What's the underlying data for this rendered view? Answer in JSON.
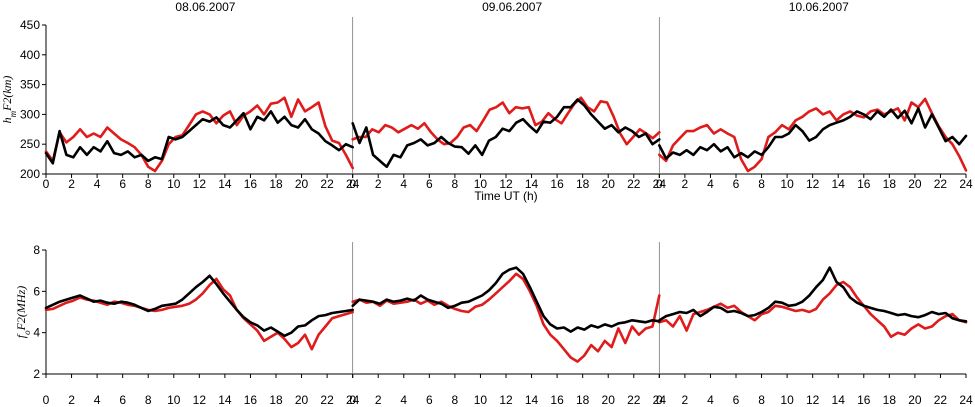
{
  "chart_data": [
    {
      "type": "line",
      "ylabel": "h_mF2(km)",
      "ylabel_main": "h",
      "ylabel_sub": "m",
      "ylabel_rest": "F2(km)",
      "xlabel": "Time UT (h)",
      "ylim": [
        200,
        450
      ],
      "yticks": [
        200,
        250,
        300,
        350,
        400,
        450
      ],
      "xticks_per_day": [
        0,
        2,
        4,
        6,
        8,
        10,
        12,
        14,
        16,
        18,
        20,
        22,
        24
      ],
      "days": [
        "08.06.2007",
        "09.06.2007",
        "10.06.2007"
      ],
      "grid": false,
      "series": [
        {
          "color": "#e01b1b",
          "values": [
            [
              238,
              222,
              270,
              253,
              262,
              275,
              262,
              268,
              262,
              278,
              268,
              258,
              252,
              245,
              232,
              212,
              205,
              222,
              250,
              262,
              265,
              282,
              300,
              305,
              300,
              285,
              298,
              305,
              282,
              298,
              305,
              315,
              300,
              318,
              320,
              328,
              296,
              325,
              305,
              312,
              320,
              280,
              256,
              252,
              232,
              210
            ],
            [
              258,
              262,
              262,
              275,
              270,
              282,
              278,
              270,
              276,
              282,
              276,
              285,
              270,
              258,
              250,
              252,
              262,
              278,
              282,
              272,
              290,
              308,
              312,
              320,
              302,
              312,
              310,
              312,
              282,
              288,
              302,
              292,
              285,
              302,
              318,
              328,
              312,
              305,
              322,
              320,
              296,
              268,
              250,
              262,
              275,
              268,
              260,
              270
            ],
            [
              232,
              222,
              248,
              260,
              272,
              272,
              278,
              282,
              268,
              275,
              268,
              262,
              225,
              205,
              212,
              225,
              262,
              270,
              282,
              275,
              290,
              296,
              305,
              310,
              300,
              305,
              290,
              300,
              305,
              298,
              295,
              305,
              308,
              300,
              305,
              310,
              290,
              320,
              312,
              326,
              302,
              280,
              262,
              250,
              230,
              206
            ]
          ]
        },
        {
          "color": "#000000",
          "values": [
            [
              235,
              218,
              272,
              232,
              228,
              245,
              232,
              245,
              238,
              255,
              235,
              232,
              238,
              228,
              232,
              222,
              228,
              225,
              262,
              258,
              262,
              272,
              282,
              292,
              288,
              295,
              282,
              278,
              290,
              302,
              275,
              296,
              290,
              305,
              286,
              296,
              282,
              278,
              292,
              275,
              268,
              255,
              248,
              240,
              250,
              245
            ],
            [
              285,
              252,
              278,
              232,
              222,
              212,
              232,
              228,
              248,
              252,
              258,
              248,
              252,
              262,
              252,
              246,
              245,
              234,
              248,
              232,
              256,
              262,
              276,
              272,
              286,
              292,
              280,
              270,
              288,
              286,
              296,
              312,
              312,
              325,
              315,
              300,
              288,
              276,
              282,
              270,
              278,
              272,
              262,
              268,
              250,
              258
            ],
            [
              248,
              226,
              236,
              232,
              240,
              232,
              245,
              240,
              250,
              238,
              245,
              228,
              235,
              228,
              238,
              232,
              245,
              262,
              262,
              268,
              282,
              272,
              256,
              262,
              275,
              282,
              286,
              290,
              296,
              305,
              300,
              292,
              305,
              296,
              308,
              294,
              306,
              285,
              310,
              278,
              300,
              278,
              255,
              262,
              250,
              264
            ]
          ]
        }
      ]
    },
    {
      "type": "line",
      "ylabel": "f_oF2(MHz)",
      "ylabel_main": "f",
      "ylabel_sub": "o",
      "ylabel_rest": "F2(MHz)",
      "xlabel": "Time UT (h)",
      "ylim": [
        2,
        8
      ],
      "yticks": [
        2,
        4,
        6,
        8
      ],
      "xticks_per_day": [
        0,
        2,
        4,
        6,
        8,
        10,
        12,
        14,
        16,
        18,
        20,
        22,
        24
      ],
      "grid": false,
      "series": [
        {
          "color": "#e01b1b",
          "values": [
            [
              5.1,
              5.15,
              5.3,
              5.45,
              5.55,
              5.7,
              5.6,
              5.55,
              5.45,
              5.35,
              5.5,
              5.45,
              5.35,
              5.3,
              5.2,
              5.1,
              5.05,
              5.1,
              5.2,
              5.25,
              5.3,
              5.4,
              5.6,
              5.9,
              6.3,
              6.6,
              6.1,
              5.8,
              5.1,
              4.7,
              4.4,
              4.1,
              3.6,
              3.8,
              4.0,
              3.7,
              3.3,
              3.5,
              3.9,
              3.2,
              3.9,
              4.3,
              4.7,
              4.8,
              4.9,
              5.0
            ],
            [
              5.5,
              5.6,
              5.45,
              5.5,
              5.3,
              5.55,
              5.4,
              5.45,
              5.5,
              5.6,
              5.4,
              5.55,
              5.35,
              5.5,
              5.3,
              5.15,
              5.05,
              5.0,
              5.25,
              5.35,
              5.6,
              5.9,
              6.2,
              6.5,
              6.85,
              6.6,
              6.0,
              5.3,
              4.4,
              3.9,
              3.6,
              3.2,
              2.8,
              2.6,
              2.9,
              3.4,
              3.1,
              3.6,
              3.3,
              4.2,
              3.5,
              4.3,
              3.9,
              4.2,
              4.3,
              5.8
            ],
            [
              4.5,
              4.6,
              4.3,
              4.8,
              4.1,
              4.9,
              5.0,
              5.1,
              5.25,
              5.4,
              5.2,
              5.3,
              5.0,
              4.8,
              4.6,
              4.9,
              5.0,
              5.3,
              5.25,
              5.15,
              5.05,
              5.1,
              5.0,
              5.15,
              5.6,
              5.9,
              6.3,
              6.45,
              6.2,
              5.7,
              5.3,
              4.9,
              4.6,
              4.3,
              3.8,
              4.0,
              3.9,
              4.2,
              4.4,
              4.2,
              4.3,
              4.6,
              4.8,
              4.9,
              4.6,
              4.5
            ]
          ]
        },
        {
          "color": "#000000",
          "values": [
            [
              5.2,
              5.35,
              5.5,
              5.6,
              5.7,
              5.8,
              5.65,
              5.5,
              5.55,
              5.45,
              5.4,
              5.5,
              5.45,
              5.35,
              5.2,
              5.05,
              5.15,
              5.3,
              5.35,
              5.4,
              5.6,
              5.9,
              6.2,
              6.45,
              6.75,
              6.35,
              5.9,
              5.5,
              5.1,
              4.75,
              4.5,
              4.35,
              4.1,
              4.25,
              4.05,
              3.85,
              4.0,
              4.3,
              4.35,
              4.6,
              4.8,
              4.85,
              4.95,
              5.0,
              5.05,
              5.1
            ],
            [
              5.3,
              5.6,
              5.55,
              5.5,
              5.4,
              5.6,
              5.5,
              5.55,
              5.65,
              5.55,
              5.8,
              5.6,
              5.5,
              5.4,
              5.2,
              5.3,
              5.45,
              5.5,
              5.65,
              5.8,
              6.05,
              6.4,
              6.85,
              7.05,
              7.15,
              6.85,
              6.2,
              5.5,
              4.8,
              4.4,
              4.2,
              4.25,
              4.05,
              4.25,
              4.15,
              4.35,
              4.25,
              4.4,
              4.3,
              4.45,
              4.5,
              4.6,
              4.55,
              4.5,
              4.6,
              4.55
            ],
            [
              4.6,
              4.8,
              4.9,
              5.0,
              4.95,
              5.1,
              4.8,
              5.0,
              5.25,
              5.2,
              5.0,
              5.05,
              4.95,
              4.8,
              4.85,
              5.0,
              5.2,
              5.5,
              5.45,
              5.3,
              5.35,
              5.5,
              5.8,
              6.2,
              6.55,
              7.15,
              6.45,
              6.2,
              5.7,
              5.45,
              5.3,
              5.2,
              5.1,
              5.05,
              4.95,
              4.85,
              4.9,
              4.8,
              4.75,
              4.85,
              5.0,
              4.9,
              4.95,
              4.7,
              4.6,
              4.55
            ]
          ]
        }
      ]
    }
  ]
}
